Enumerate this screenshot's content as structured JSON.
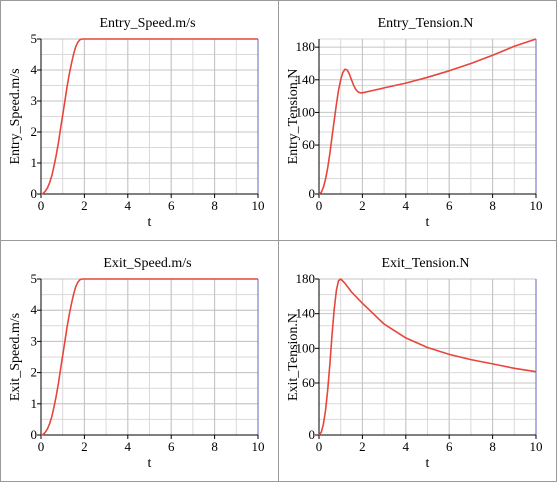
{
  "colors": {
    "line": "#e8453c",
    "grid": "#d9d9d9",
    "axis": "#000000",
    "frame": "#7f7fc8"
  },
  "chart_data": [
    {
      "type": "line",
      "title": "Entry_Speed.m/s",
      "xlabel": "t",
      "ylabel": "Entry_Speed.m/s",
      "xlim": [
        0,
        10
      ],
      "ylim": [
        0,
        5
      ],
      "xticks": [
        0,
        2,
        4,
        6,
        8,
        10
      ],
      "yticks": [
        0,
        1,
        2,
        3,
        4,
        5
      ],
      "xtick_labels": [
        "0",
        "2",
        "4",
        "6",
        "8",
        "10"
      ],
      "ytick_labels": [
        "0",
        "1",
        "2",
        "3",
        "4",
        "5"
      ],
      "grid": true,
      "series": [
        {
          "x": [
            0,
            0.1,
            0.2,
            0.3,
            0.4,
            0.5,
            0.6,
            0.7,
            0.8,
            0.9,
            1.0,
            1.1,
            1.2,
            1.3,
            1.4,
            1.5,
            1.6,
            1.7,
            1.8,
            1.9,
            2.0,
            10
          ],
          "y": [
            0,
            0.02,
            0.09,
            0.2,
            0.37,
            0.6,
            0.9,
            1.25,
            1.65,
            2.1,
            2.55,
            3.0,
            3.45,
            3.85,
            4.2,
            4.5,
            4.75,
            4.9,
            4.98,
            5.0,
            5.0,
            5.0
          ]
        }
      ]
    },
    {
      "type": "line",
      "title": "Entry_Tension.N",
      "xlabel": "t",
      "ylabel": "Entry_Tension.N",
      "xlim": [
        0,
        10
      ],
      "ylim": [
        0,
        190
      ],
      "xticks": [
        0,
        2,
        4,
        6,
        8,
        10
      ],
      "yticks": [
        0,
        60,
        100,
        140,
        180
      ],
      "xtick_labels": [
        "0",
        "2",
        "4",
        "6",
        "8",
        "10"
      ],
      "ytick_labels": [
        "0",
        "60",
        "100",
        "140",
        "180"
      ],
      "grid": true,
      "series": [
        {
          "x": [
            0,
            0.1,
            0.2,
            0.3,
            0.4,
            0.5,
            0.6,
            0.7,
            0.8,
            0.9,
            1.0,
            1.1,
            1.2,
            1.3,
            1.4,
            1.5,
            1.6,
            1.7,
            1.8,
            1.9,
            2.0,
            2.5,
            3,
            4,
            5,
            6,
            7,
            8,
            9,
            10
          ],
          "y": [
            0,
            2,
            8,
            18,
            32,
            50,
            70,
            90,
            110,
            127,
            140,
            149,
            153,
            152,
            147,
            140,
            133,
            128,
            125,
            124,
            124,
            127,
            130,
            136,
            143,
            151,
            160,
            170,
            181,
            192
          ]
        }
      ]
    },
    {
      "type": "line",
      "title": "Exit_Speed.m/s",
      "xlabel": "t",
      "ylabel": "Exit_Speed.m/s",
      "xlim": [
        0,
        10
      ],
      "ylim": [
        0,
        5
      ],
      "xticks": [
        0,
        2,
        4,
        6,
        8,
        10
      ],
      "yticks": [
        0,
        1,
        2,
        3,
        4,
        5
      ],
      "xtick_labels": [
        "0",
        "2",
        "4",
        "6",
        "8",
        "10"
      ],
      "ytick_labels": [
        "0",
        "1",
        "2",
        "3",
        "4",
        "5"
      ],
      "grid": true,
      "series": [
        {
          "x": [
            0,
            0.1,
            0.2,
            0.3,
            0.4,
            0.5,
            0.6,
            0.7,
            0.8,
            0.9,
            1.0,
            1.1,
            1.2,
            1.3,
            1.4,
            1.5,
            1.6,
            1.7,
            1.8,
            1.9,
            2.0,
            10
          ],
          "y": [
            0,
            0.02,
            0.09,
            0.2,
            0.37,
            0.6,
            0.9,
            1.25,
            1.65,
            2.1,
            2.55,
            3.0,
            3.45,
            3.85,
            4.2,
            4.5,
            4.75,
            4.9,
            4.98,
            5.0,
            5.0,
            5.0
          ]
        }
      ]
    },
    {
      "type": "line",
      "title": "Exit_Tension.N",
      "xlabel": "t",
      "ylabel": "Exit_Tension.N",
      "xlim": [
        0,
        10
      ],
      "ylim": [
        0,
        180
      ],
      "xticks": [
        0,
        2,
        4,
        6,
        8,
        10
      ],
      "yticks": [
        0,
        60,
        100,
        140,
        180
      ],
      "xtick_labels": [
        "0",
        "2",
        "4",
        "6",
        "8",
        "10"
      ],
      "ytick_labels": [
        "0",
        "60",
        "100",
        "140",
        "180"
      ],
      "grid": true,
      "series": [
        {
          "x": [
            0,
            0.1,
            0.2,
            0.3,
            0.4,
            0.5,
            0.6,
            0.7,
            0.8,
            0.9,
            1.0,
            1.2,
            1.5,
            2,
            2.5,
            3,
            4,
            5,
            6,
            7,
            8,
            9,
            10
          ],
          "y": [
            0,
            3,
            12,
            28,
            52,
            82,
            115,
            145,
            167,
            178,
            180,
            175,
            165,
            152,
            140,
            128,
            112,
            101,
            93,
            87,
            82,
            77,
            73
          ]
        }
      ]
    }
  ]
}
